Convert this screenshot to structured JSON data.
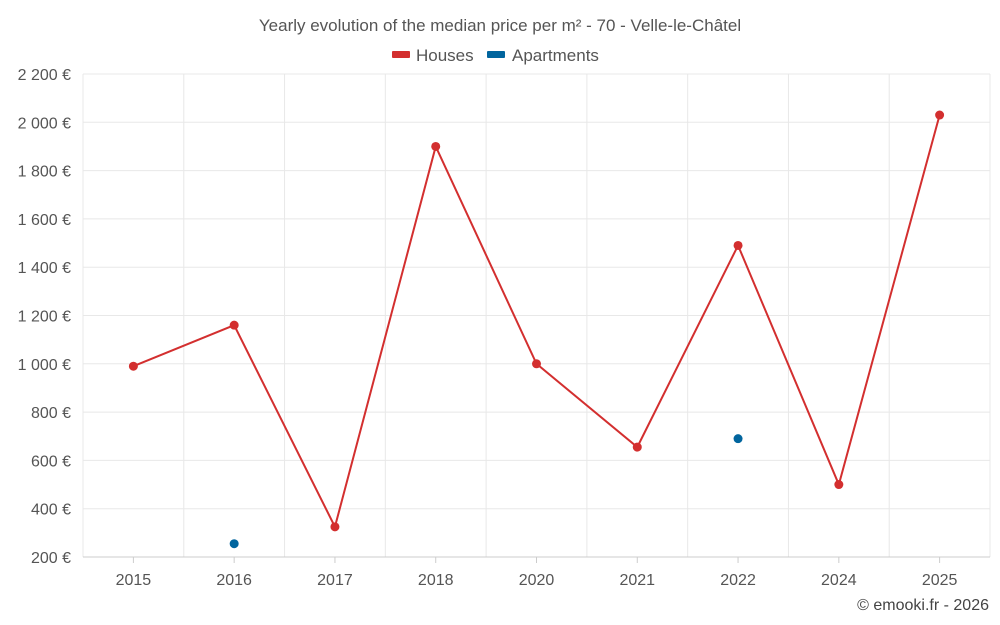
{
  "chart_data": {
    "type": "line",
    "title": "Yearly evolution of the median price per m² - 70 - Velle-le-Châtel",
    "categories": [
      "2015",
      "2016",
      "2017",
      "2018",
      "2020",
      "2021",
      "2022",
      "2024",
      "2025"
    ],
    "series": [
      {
        "name": "Houses",
        "color": "#d32f2f",
        "values": [
          990,
          1160,
          325,
          1900,
          1000,
          655,
          1490,
          500,
          2030
        ]
      },
      {
        "name": "Apartments",
        "color": "#01659e",
        "values": [
          null,
          255,
          null,
          null,
          null,
          null,
          690,
          null,
          null
        ]
      }
    ],
    "ylim": [
      200,
      2200
    ],
    "yticks": [
      200,
      400,
      600,
      800,
      1000,
      1200,
      1400,
      1600,
      1800,
      2000,
      2200
    ],
    "ytick_labels": [
      "200 €",
      "400 €",
      "600 €",
      "800 €",
      "1 000 €",
      "1 200 €",
      "1 400 €",
      "1 600 €",
      "1 800 €",
      "2 000 €",
      "2 200 €"
    ],
    "xlabel": "",
    "ylabel": "",
    "grid": true,
    "legend_position": "top-center"
  },
  "credit": "© emooki.fr - 2026"
}
